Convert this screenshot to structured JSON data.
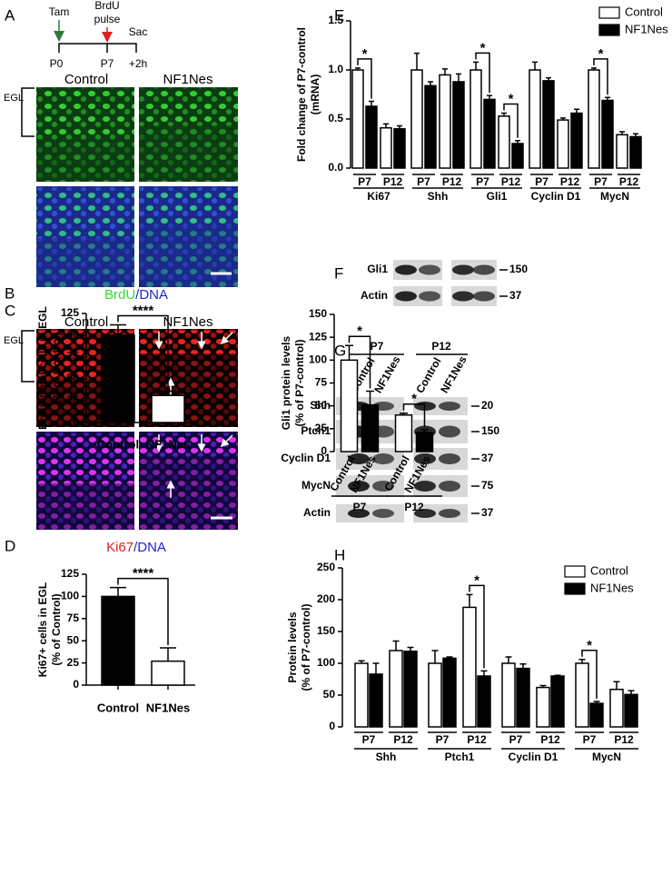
{
  "panel_labels": [
    "A",
    "B",
    "C",
    "D",
    "E",
    "F",
    "G",
    "H"
  ],
  "panel_a": {
    "treatments": {
      "tam": "Tam",
      "brdu": [
        "BrdU",
        "pulse"
      ],
      "sac": "Sac"
    },
    "timepoints": [
      "P0",
      "P7",
      "+2h"
    ],
    "columns": [
      "Control",
      "NF1Nes"
    ],
    "region": "EGL"
  },
  "panel_c": {
    "columns": [
      "Control",
      "NF1Nes"
    ],
    "region": "EGL"
  },
  "blot_f": {
    "rows": [
      {
        "label": "Gli1",
        "marker": 150
      },
      {
        "label": "Actin",
        "marker": 37
      }
    ]
  },
  "blot_g": {
    "timepoints": [
      "P7",
      "P12"
    ],
    "lanes": [
      "Control",
      "NF1Nes"
    ],
    "rows": [
      {
        "label": "Shh",
        "marker": 20
      },
      {
        "label": "Ptch1",
        "marker": 150
      },
      {
        "label": "Cyclin D1",
        "marker": 37
      },
      {
        "label": "MycN",
        "marker": 75
      },
      {
        "label": "Actin",
        "marker": 37
      }
    ]
  },
  "chart_data": [
    {
      "type": "bar",
      "title": [
        {
          "text": "BrdU",
          "color": "#33dd33"
        },
        {
          "text": "/DNA",
          "color": "#2222cc"
        }
      ],
      "ylabel": [
        "Brdu+/total cells in EGL",
        "(% of Control)"
      ],
      "categories": [
        "Control",
        "NF1Nes"
      ],
      "values": [
        100,
        31
      ],
      "errors": [
        12,
        5
      ],
      "colors": [
        "#000000",
        "#ffffff"
      ],
      "ylim": [
        0,
        125
      ],
      "yticks": [
        0,
        25,
        50,
        75,
        100,
        125
      ],
      "significance": "****"
    },
    {
      "type": "bar",
      "title": [
        {
          "text": "Ki67",
          "color": "#dd2222"
        },
        {
          "text": "/DNA",
          "color": "#2222cc"
        }
      ],
      "ylabel": [
        "Ki67+ cells in EGL",
        "(% of Control)"
      ],
      "categories": [
        "Control",
        "NF1Nes"
      ],
      "values": [
        100,
        27
      ],
      "errors": [
        10,
        15
      ],
      "colors": [
        "#000000",
        "#ffffff"
      ],
      "ylim": [
        0,
        125
      ],
      "yticks": [
        0,
        25,
        50,
        75,
        100,
        125
      ],
      "significance": "****"
    },
    {
      "type": "grouped_bar",
      "ylabel": [
        "Fold change of P7-control",
        "(mRNA)"
      ],
      "groups": [
        "Ki67",
        "Shh",
        "Gli1",
        "Cyclin D1",
        "MycN"
      ],
      "subgroups": [
        "P7",
        "P12"
      ],
      "series": [
        {
          "name": "Control",
          "color": "#ffffff",
          "values": [
            1.0,
            0.41,
            1.0,
            0.95,
            1.0,
            0.53,
            1.0,
            0.49,
            1.0,
            0.34
          ],
          "errors": [
            0.02,
            0.04,
            0.17,
            0.06,
            0.08,
            0.03,
            0.08,
            0.02,
            0.02,
            0.03
          ]
        },
        {
          "name": "NF1Nes",
          "color": "#000000",
          "values": [
            0.63,
            0.4,
            0.84,
            0.88,
            0.7,
            0.25,
            0.89,
            0.56,
            0.69,
            0.32
          ],
          "errors": [
            0.05,
            0.03,
            0.04,
            0.08,
            0.04,
            0.03,
            0.03,
            0.04,
            0.03,
            0.03
          ]
        }
      ],
      "significance": [
        "*",
        null,
        null,
        null,
        "*",
        "*",
        null,
        null,
        "*",
        null
      ],
      "ylim": [
        0,
        1.5
      ],
      "yticks": [
        {
          "value": 0,
          "label": "0.0"
        },
        0.5,
        {
          "value": 1,
          "label": "1.0"
        },
        1.5
      ],
      "legend": "upper right"
    },
    {
      "type": "paired_bar",
      "ylabel": [
        "Gli1 protein levels",
        "(% of P7-control)"
      ],
      "groups": [
        "P7",
        "P12"
      ],
      "series": [
        {
          "name": "Control",
          "color": "#ffffff",
          "values": [
            100,
            40
          ],
          "errors": [
            16,
            2
          ]
        },
        {
          "name": "NF1Nes",
          "color": "#000000",
          "values": [
            51,
            21
          ],
          "errors": [
            15,
            3
          ]
        }
      ],
      "significance": [
        "*",
        "*"
      ],
      "ylim": [
        0,
        150
      ],
      "yticks": [
        0,
        25,
        50,
        75,
        100,
        125,
        150
      ]
    },
    {
      "type": "grouped_bar",
      "ylabel": [
        "Protein levels",
        "(% of P7-control)"
      ],
      "groups": [
        "Shh",
        "Ptch1",
        "Cyclin D1",
        "MycN"
      ],
      "subgroups": [
        "P7",
        "P12"
      ],
      "series": [
        {
          "name": "Control",
          "color": "#ffffff",
          "values": [
            100,
            120,
            100,
            188,
            100,
            62,
            100,
            59
          ],
          "errors": [
            4,
            15,
            20,
            20,
            10,
            3,
            6,
            12
          ]
        },
        {
          "name": "NF1Nes",
          "color": "#000000",
          "values": [
            83,
            119,
            108,
            80,
            92,
            80,
            37,
            51
          ],
          "errors": [
            17,
            6,
            2,
            8,
            7,
            1,
            3,
            6
          ]
        }
      ],
      "significance": [
        null,
        null,
        null,
        "*",
        null,
        null,
        "*",
        null
      ],
      "ylim": [
        0,
        250
      ],
      "yticks": [
        0,
        50,
        100,
        150,
        200,
        250
      ],
      "legend": "upper right"
    }
  ]
}
